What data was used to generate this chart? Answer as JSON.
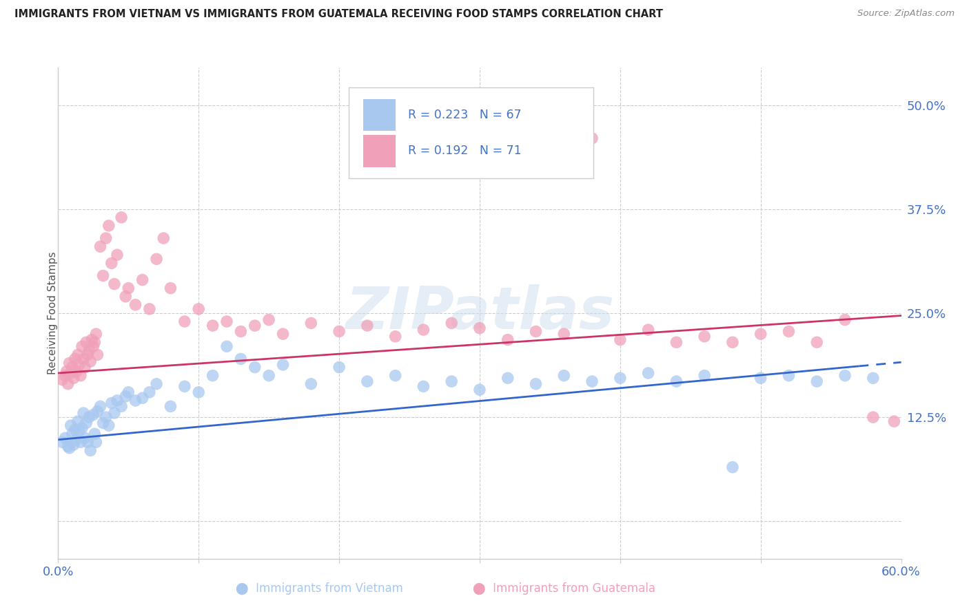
{
  "title": "IMMIGRANTS FROM VIETNAM VS IMMIGRANTS FROM GUATEMALA RECEIVING FOOD STAMPS CORRELATION CHART",
  "source": "Source: ZipAtlas.com",
  "ylabel": "Receiving Food Stamps",
  "ytick_labels": [
    "",
    "12.5%",
    "25.0%",
    "37.5%",
    "50.0%"
  ],
  "yticks": [
    0.0,
    0.125,
    0.25,
    0.375,
    0.5
  ],
  "xlim": [
    0.0,
    0.6
  ],
  "ylim": [
    -0.045,
    0.545
  ],
  "legend_r1": "R = 0.223",
  "legend_n1": "N = 67",
  "legend_r2": "R = 0.192",
  "legend_n2": "N = 71",
  "color_vietnam": "#A8C8F0",
  "color_guatemala": "#F0A0B8",
  "color_vietnam_line": "#3366CC",
  "color_guatemala_line": "#CC3366",
  "color_axis": "#4472C4",
  "color_grid": "#CCCCCC",
  "watermark": "ZIPatlas",
  "vietnam_intercept": 0.098,
  "vietnam_slope": 0.155,
  "guatemala_intercept": 0.178,
  "guatemala_slope": 0.115,
  "vietnam_x": [
    0.003,
    0.005,
    0.007,
    0.008,
    0.009,
    0.01,
    0.011,
    0.012,
    0.013,
    0.014,
    0.015,
    0.016,
    0.017,
    0.018,
    0.019,
    0.02,
    0.021,
    0.022,
    0.023,
    0.025,
    0.026,
    0.027,
    0.028,
    0.03,
    0.032,
    0.034,
    0.036,
    0.038,
    0.04,
    0.042,
    0.045,
    0.048,
    0.05,
    0.055,
    0.06,
    0.065,
    0.07,
    0.08,
    0.09,
    0.1,
    0.11,
    0.12,
    0.13,
    0.14,
    0.15,
    0.16,
    0.18,
    0.2,
    0.22,
    0.24,
    0.26,
    0.28,
    0.3,
    0.32,
    0.34,
    0.36,
    0.38,
    0.4,
    0.42,
    0.44,
    0.46,
    0.48,
    0.5,
    0.52,
    0.54,
    0.56,
    0.58
  ],
  "vietnam_y": [
    0.095,
    0.1,
    0.09,
    0.088,
    0.115,
    0.105,
    0.092,
    0.11,
    0.098,
    0.12,
    0.108,
    0.095,
    0.112,
    0.13,
    0.1,
    0.118,
    0.095,
    0.125,
    0.085,
    0.128,
    0.105,
    0.095,
    0.132,
    0.138,
    0.118,
    0.125,
    0.115,
    0.142,
    0.13,
    0.145,
    0.138,
    0.15,
    0.155,
    0.145,
    0.148,
    0.155,
    0.165,
    0.138,
    0.162,
    0.155,
    0.175,
    0.21,
    0.195,
    0.185,
    0.175,
    0.188,
    0.165,
    0.185,
    0.168,
    0.175,
    0.162,
    0.168,
    0.158,
    0.172,
    0.165,
    0.175,
    0.168,
    0.172,
    0.178,
    0.168,
    0.175,
    0.065,
    0.172,
    0.175,
    0.168,
    0.175,
    0.172
  ],
  "guatemala_x": [
    0.003,
    0.005,
    0.006,
    0.007,
    0.008,
    0.009,
    0.01,
    0.011,
    0.012,
    0.013,
    0.014,
    0.015,
    0.016,
    0.017,
    0.018,
    0.019,
    0.02,
    0.021,
    0.022,
    0.023,
    0.024,
    0.025,
    0.026,
    0.027,
    0.028,
    0.03,
    0.032,
    0.034,
    0.036,
    0.038,
    0.04,
    0.042,
    0.045,
    0.048,
    0.05,
    0.055,
    0.06,
    0.065,
    0.07,
    0.075,
    0.08,
    0.09,
    0.1,
    0.11,
    0.12,
    0.13,
    0.14,
    0.15,
    0.16,
    0.18,
    0.2,
    0.22,
    0.24,
    0.26,
    0.28,
    0.3,
    0.32,
    0.34,
    0.36,
    0.38,
    0.4,
    0.42,
    0.44,
    0.46,
    0.48,
    0.5,
    0.52,
    0.54,
    0.56,
    0.58,
    0.595
  ],
  "guatemala_y": [
    0.17,
    0.175,
    0.18,
    0.165,
    0.19,
    0.178,
    0.185,
    0.172,
    0.195,
    0.18,
    0.2,
    0.188,
    0.175,
    0.21,
    0.195,
    0.185,
    0.215,
    0.2,
    0.205,
    0.192,
    0.218,
    0.21,
    0.215,
    0.225,
    0.2,
    0.33,
    0.295,
    0.34,
    0.355,
    0.31,
    0.285,
    0.32,
    0.365,
    0.27,
    0.28,
    0.26,
    0.29,
    0.255,
    0.315,
    0.34,
    0.28,
    0.24,
    0.255,
    0.235,
    0.24,
    0.228,
    0.235,
    0.242,
    0.225,
    0.238,
    0.228,
    0.235,
    0.222,
    0.23,
    0.238,
    0.232,
    0.218,
    0.228,
    0.225,
    0.46,
    0.218,
    0.23,
    0.215,
    0.222,
    0.215,
    0.225,
    0.228,
    0.215,
    0.242,
    0.125,
    0.12
  ]
}
